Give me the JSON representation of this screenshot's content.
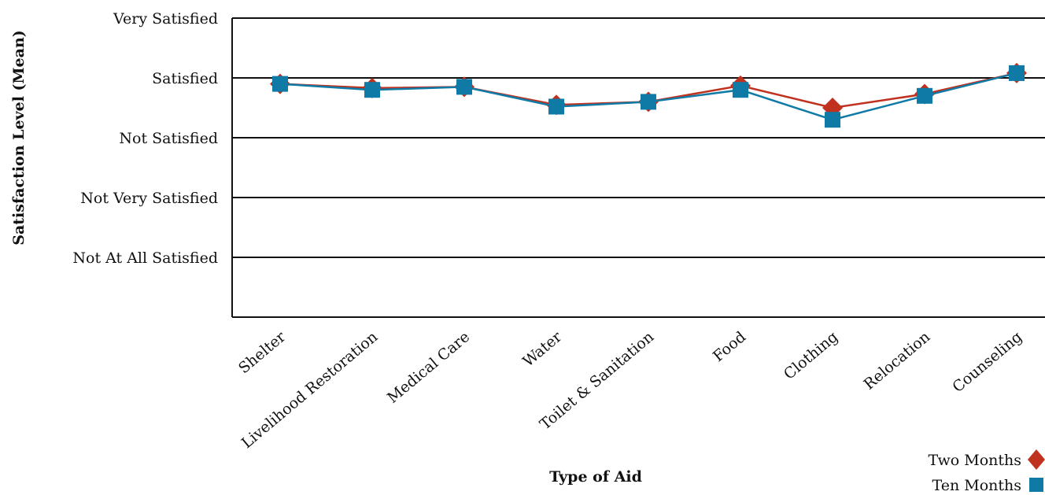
{
  "chart_data": {
    "type": "line",
    "xlabel": "Type of Aid",
    "ylabel": "Satisfaction Level (Mean)",
    "categories": [
      "Shelter",
      "Livelihood Restoration",
      "Medical Care",
      "Water",
      "Toilet & Sanitation",
      "Food",
      "Clothing",
      "Relocation",
      "Counseling"
    ],
    "y_levels": [
      "Not At All Satisfied",
      "Not Very Satisfied",
      "Not Satisfied",
      "Satisfied",
      "Very Satisfied"
    ],
    "y_level_values": [
      1,
      2,
      3,
      4,
      5
    ],
    "ylim": [
      0,
      5
    ],
    "grid": true,
    "legend_position": "bottom-right",
    "series": [
      {
        "name": "Two Months",
        "color": "#c0311f",
        "marker": "diamond",
        "values": [
          3.9,
          3.83,
          3.85,
          3.55,
          3.6,
          3.87,
          3.5,
          3.73,
          4.08
        ]
      },
      {
        "name": "Ten Months",
        "color": "#0e7aa5",
        "marker": "square",
        "values": [
          3.9,
          3.8,
          3.85,
          3.52,
          3.6,
          3.8,
          3.3,
          3.7,
          4.08
        ]
      }
    ]
  }
}
